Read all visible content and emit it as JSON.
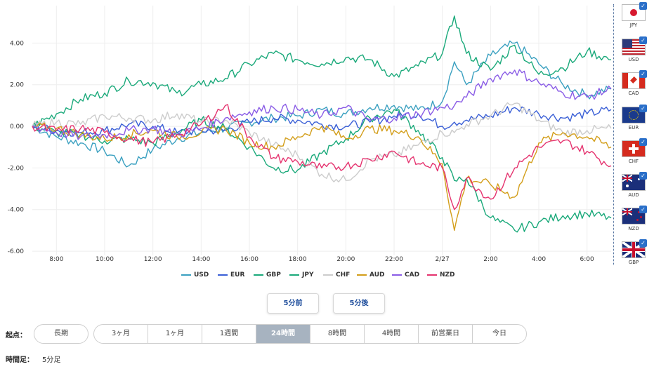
{
  "chart_data": {
    "type": "line",
    "ylim": [
      -6.2,
      5.8
    ],
    "yticks": [
      4.0,
      2.0,
      0.0,
      -2.0,
      -4.0,
      -6.0
    ],
    "ytick_labels": [
      "4.00",
      "2.00",
      "0.00",
      "-2.00",
      "-4.00",
      "-6.00"
    ],
    "xlim": [
      7.0,
      31.0
    ],
    "xticks": [
      8,
      10,
      12,
      14,
      16,
      18,
      20,
      22,
      24,
      26,
      28,
      30
    ],
    "xtick_labels": [
      "8:00",
      "10:00",
      "12:00",
      "14:00",
      "16:00",
      "18:00",
      "20:00",
      "22:00",
      "2/27",
      "2:00",
      "4:00",
      "6:00"
    ],
    "x": [
      7,
      8,
      9,
      10,
      11,
      12,
      13,
      14,
      15,
      16,
      17,
      18,
      19,
      20,
      21,
      22,
      23,
      24,
      24.5,
      25,
      26,
      27,
      28,
      29,
      30,
      31
    ],
    "series": [
      {
        "name": "USD",
        "color": "#3aa0c0",
        "values": [
          0.0,
          -0.5,
          -0.8,
          -1.2,
          -1.9,
          -1.1,
          -0.6,
          -0.3,
          -0.1,
          0.2,
          0.4,
          0.5,
          0.8,
          0.6,
          0.9,
          1.0,
          0.8,
          1.2,
          3.1,
          2.0,
          3.4,
          4.0,
          3.0,
          2.0,
          1.5,
          1.8
        ]
      },
      {
        "name": "EUR",
        "color": "#3a5fd6",
        "values": [
          0.0,
          -0.2,
          -0.3,
          -0.2,
          0.1,
          0.0,
          -0.3,
          -0.2,
          -0.2,
          0.2,
          0.4,
          0.3,
          0.1,
          0.0,
          0.2,
          0.5,
          0.6,
          0.0,
          0.2,
          0.3,
          0.5,
          0.9,
          0.6,
          0.4,
          0.6,
          0.8
        ]
      },
      {
        "name": "GBP",
        "color": "#1aa97a",
        "values": [
          0.0,
          0.6,
          1.3,
          1.6,
          2.2,
          2.1,
          1.6,
          2.0,
          2.3,
          3.0,
          3.5,
          3.2,
          3.0,
          3.3,
          3.2,
          2.4,
          2.9,
          3.5,
          5.3,
          3.5,
          2.7,
          3.9,
          2.5,
          2.8,
          3.6,
          3.2
        ]
      },
      {
        "name": "JPY",
        "color": "#1aa97a",
        "values": [
          0.0,
          -0.3,
          -0.4,
          -0.7,
          -0.6,
          -0.8,
          -0.3,
          0.3,
          -0.1,
          -1.0,
          -2.0,
          -2.1,
          -1.3,
          -0.6,
          0.4,
          0.8,
          -0.2,
          -1.5,
          -2.6,
          -2.5,
          -4.4,
          -5.0,
          -4.6,
          -4.3,
          -4.2,
          -4.4
        ]
      },
      {
        "name": "CHF",
        "color": "#cccccc",
        "values": [
          0.0,
          0.2,
          0.1,
          0.5,
          0.4,
          0.3,
          0.6,
          0.2,
          0.3,
          -0.3,
          -0.9,
          -1.4,
          -2.3,
          -2.6,
          -1.6,
          -1.4,
          -0.9,
          -0.3,
          -0.3,
          0.1,
          0.5,
          1.1,
          0.3,
          -0.3,
          -0.2,
          -0.1
        ]
      },
      {
        "name": "AUD",
        "color": "#d39e1a",
        "values": [
          0.0,
          -0.1,
          -0.4,
          -0.6,
          -0.4,
          -0.2,
          -0.5,
          -0.3,
          -0.1,
          -0.8,
          -1.0,
          -0.5,
          0.0,
          -0.6,
          -0.1,
          -0.2,
          -0.5,
          -1.8,
          -5.0,
          -2.5,
          -2.8,
          -3.4,
          -0.8,
          -0.3,
          -0.5,
          -1.0
        ]
      },
      {
        "name": "CAD",
        "color": "#8a5ce6",
        "values": [
          0.0,
          -0.3,
          -0.5,
          -0.4,
          -0.2,
          -0.1,
          -0.4,
          -0.1,
          0.4,
          0.7,
          0.9,
          0.8,
          0.5,
          0.9,
          0.3,
          0.4,
          0.6,
          0.9,
          1.0,
          1.4,
          2.3,
          2.7,
          2.1,
          1.6,
          1.4,
          1.8
        ]
      },
      {
        "name": "NZD",
        "color": "#e5336f",
        "values": [
          0.0,
          -0.2,
          -0.1,
          -0.3,
          -0.6,
          -0.8,
          -0.4,
          0.1,
          1.0,
          -0.5,
          -1.5,
          -1.7,
          -2.0,
          -1.9,
          -1.6,
          -1.2,
          -1.8,
          -2.0,
          -4.0,
          -2.5,
          -3.5,
          -2.0,
          -1.0,
          -0.7,
          -1.2,
          -1.9
        ]
      }
    ]
  },
  "legend": [
    "USD",
    "EUR",
    "GBP",
    "JPY",
    "CHF",
    "AUD",
    "CAD",
    "NZD"
  ],
  "controls": {
    "prev_label": "5分前",
    "next_label": "5分後",
    "origin_label": "起点：",
    "long_term_label": "長期",
    "periods": [
      "3ヶ月",
      "1ヶ月",
      "1週間",
      "24時間",
      "8時間",
      "4時間",
      "前営業日",
      "今日"
    ],
    "active_period": "24時間",
    "interval_label": "時間足：",
    "interval_value": "5分足"
  },
  "flags": [
    {
      "code": "JPY",
      "checked": true
    },
    {
      "code": "USD",
      "checked": true
    },
    {
      "code": "CAD",
      "checked": true
    },
    {
      "code": "EUR",
      "checked": true
    },
    {
      "code": "CHF",
      "checked": true
    },
    {
      "code": "AUD",
      "checked": true
    },
    {
      "code": "NZD",
      "checked": true
    },
    {
      "code": "GBP",
      "checked": true
    }
  ]
}
